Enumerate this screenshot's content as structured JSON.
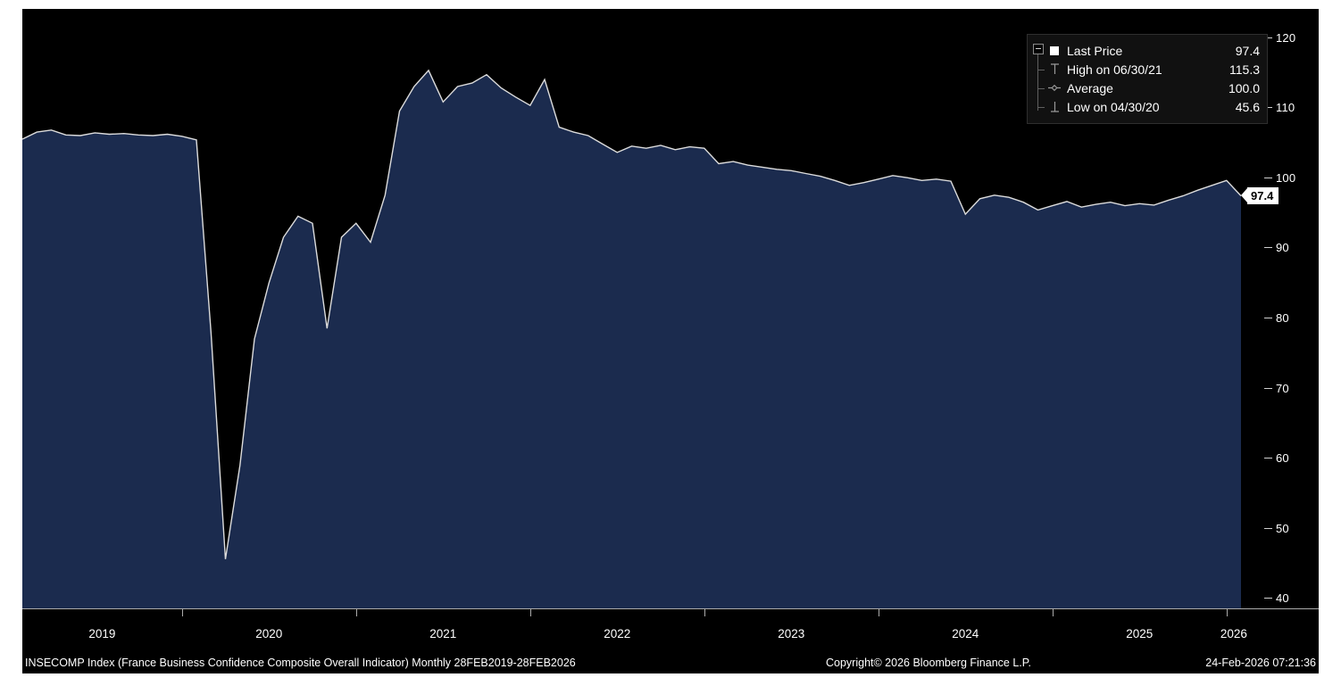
{
  "colors": {
    "background": "#000000",
    "area_fill": "#1b2b4e",
    "line": "#dcdcdc",
    "axis_text": "#ffffff",
    "badge_bg": "#ffffff"
  },
  "chart_data": {
    "type": "area",
    "title": "INSECOMP Index (France Business Confidence Composite Overall Indicator)",
    "frequency": "Monthly",
    "period": "28FEB2019-28FEB2026",
    "grid": false,
    "legend_position": "top-right",
    "ylim": [
      40,
      120
    ],
    "last_price": 97.4,
    "high": {
      "date": "06/30/21",
      "value": 115.3
    },
    "average": 100.0,
    "low": {
      "date": "04/30/20",
      "value": 45.6
    },
    "y_axis": {
      "ticks": [
        120,
        110,
        100,
        90,
        80,
        70,
        60,
        50,
        40
      ]
    },
    "x_axis": {
      "year_labels": [
        "2019",
        "2020",
        "2021",
        "2022",
        "2023",
        "2024",
        "2025",
        "2026"
      ],
      "label_center_month": [
        5.5,
        17,
        29,
        41,
        53,
        65,
        77,
        83.5
      ],
      "tick_month_indices": [
        11,
        23,
        35,
        47,
        59,
        71,
        83
      ]
    },
    "x": [
      "2019-02",
      "2019-03",
      "2019-04",
      "2019-05",
      "2019-06",
      "2019-07",
      "2019-08",
      "2019-09",
      "2019-10",
      "2019-11",
      "2019-12",
      "2020-01",
      "2020-02",
      "2020-03",
      "2020-04",
      "2020-05",
      "2020-06",
      "2020-07",
      "2020-08",
      "2020-09",
      "2020-10",
      "2020-11",
      "2020-12",
      "2021-01",
      "2021-02",
      "2021-03",
      "2021-04",
      "2021-05",
      "2021-06",
      "2021-07",
      "2021-08",
      "2021-09",
      "2021-10",
      "2021-11",
      "2021-12",
      "2022-01",
      "2022-02",
      "2022-03",
      "2022-04",
      "2022-05",
      "2022-06",
      "2022-07",
      "2022-08",
      "2022-09",
      "2022-10",
      "2022-11",
      "2022-12",
      "2023-01",
      "2023-02",
      "2023-03",
      "2023-04",
      "2023-05",
      "2023-06",
      "2023-07",
      "2023-08",
      "2023-09",
      "2023-10",
      "2023-11",
      "2023-12",
      "2024-01",
      "2024-02",
      "2024-03",
      "2024-04",
      "2024-05",
      "2024-06",
      "2024-07",
      "2024-08",
      "2024-09",
      "2024-10",
      "2024-11",
      "2024-12",
      "2025-01",
      "2025-02",
      "2025-03",
      "2025-04",
      "2025-05",
      "2025-06",
      "2025-07",
      "2025-08",
      "2025-09",
      "2025-10",
      "2025-11",
      "2025-12",
      "2026-01",
      "2026-02"
    ],
    "values": [
      105.5,
      106.5,
      106.8,
      106.1,
      106.0,
      106.4,
      106.2,
      106.3,
      106.1,
      106.0,
      106.2,
      105.9,
      105.4,
      78.0,
      45.6,
      59.0,
      77.0,
      85.0,
      91.5,
      94.5,
      93.5,
      78.5,
      91.5,
      93.5,
      90.8,
      97.5,
      109.5,
      113.0,
      115.3,
      110.8,
      113.0,
      113.5,
      114.7,
      112.8,
      111.5,
      110.3,
      114.0,
      107.2,
      106.5,
      106.0,
      104.8,
      103.6,
      104.5,
      104.2,
      104.6,
      104.0,
      104.4,
      104.2,
      102.0,
      102.3,
      101.8,
      101.5,
      101.2,
      101.0,
      100.6,
      100.2,
      99.6,
      98.9,
      99.3,
      99.8,
      100.3,
      100.0,
      99.6,
      99.8,
      99.5,
      94.8,
      97.0,
      97.5,
      97.2,
      96.5,
      95.4,
      96.0,
      96.6,
      95.8,
      96.2,
      96.5,
      96.0,
      96.3,
      96.1,
      96.8,
      97.4,
      98.2,
      98.9,
      99.6,
      97.4
    ]
  },
  "legend": {
    "rows": [
      {
        "icon": "last-price-square",
        "label": "Last Price",
        "value": "97.4"
      },
      {
        "icon": "high-marker",
        "label": "High on 06/30/21",
        "value": "115.3"
      },
      {
        "icon": "average-marker",
        "label": "Average",
        "value": "100.0"
      },
      {
        "icon": "low-marker",
        "label": "Low on 04/30/20",
        "value": "45.6"
      }
    ]
  },
  "axis": {
    "last_price_label": "97.4"
  },
  "footer": {
    "left": "INSECOMP Index (France Business Confidence Composite Overall Indicator) Monthly 28FEB2019-28FEB2026",
    "center": "Copyright© 2026 Bloomberg Finance L.P.",
    "right": "24-Feb-2026 07:21:36"
  }
}
